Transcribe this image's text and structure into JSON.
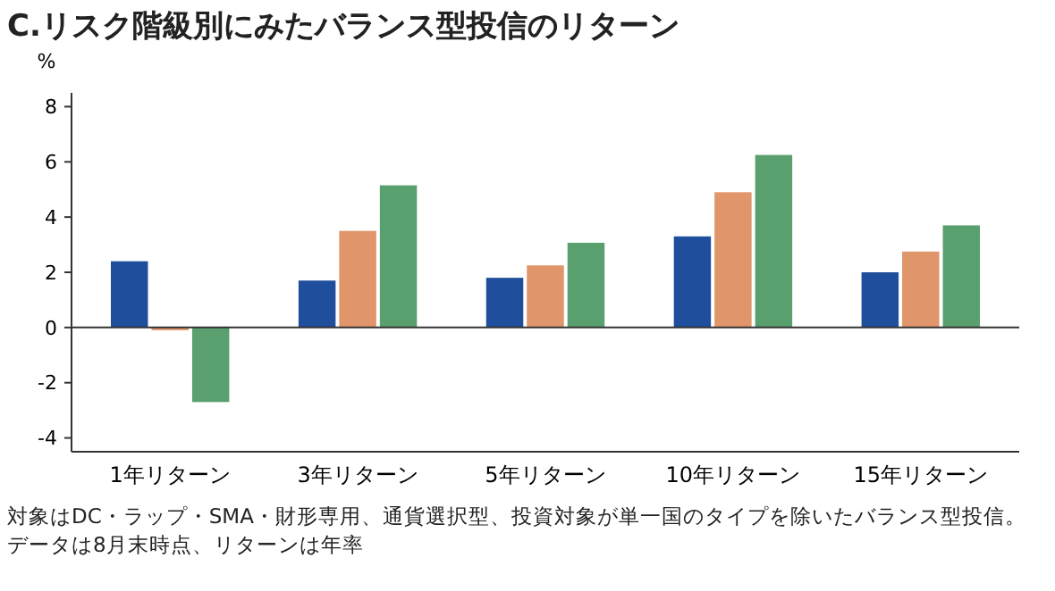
{
  "chart_data": {
    "type": "bar",
    "title": "C.リスク階級別にみたバランス型投信のリターン",
    "ylabel": "%",
    "categories": [
      "1年リターン",
      "3年リターン",
      "5年リターン",
      "10年リターン",
      "15年リターン"
    ],
    "series": [
      {
        "color": "#1f4e9c",
        "values": [
          2.4,
          1.7,
          1.8,
          3.3,
          2.0
        ]
      },
      {
        "color": "#e0956a",
        "values": [
          -0.1,
          3.5,
          2.25,
          4.9,
          2.75
        ]
      },
      {
        "color": "#5aa06e",
        "values": [
          -2.7,
          5.15,
          3.07,
          6.25,
          3.7
        ]
      }
    ],
    "ylim": [
      -4.5,
      8.5
    ],
    "yticks": [
      -4,
      -2,
      0,
      2,
      4,
      6,
      8
    ],
    "annotations": [
      "対象はDC・ラップ・SMA・財形専用、通貨選択型、投資対象が単一国のタイプを除いたバランス型投信。",
      "データは8月末時点、リターンは年率"
    ]
  }
}
